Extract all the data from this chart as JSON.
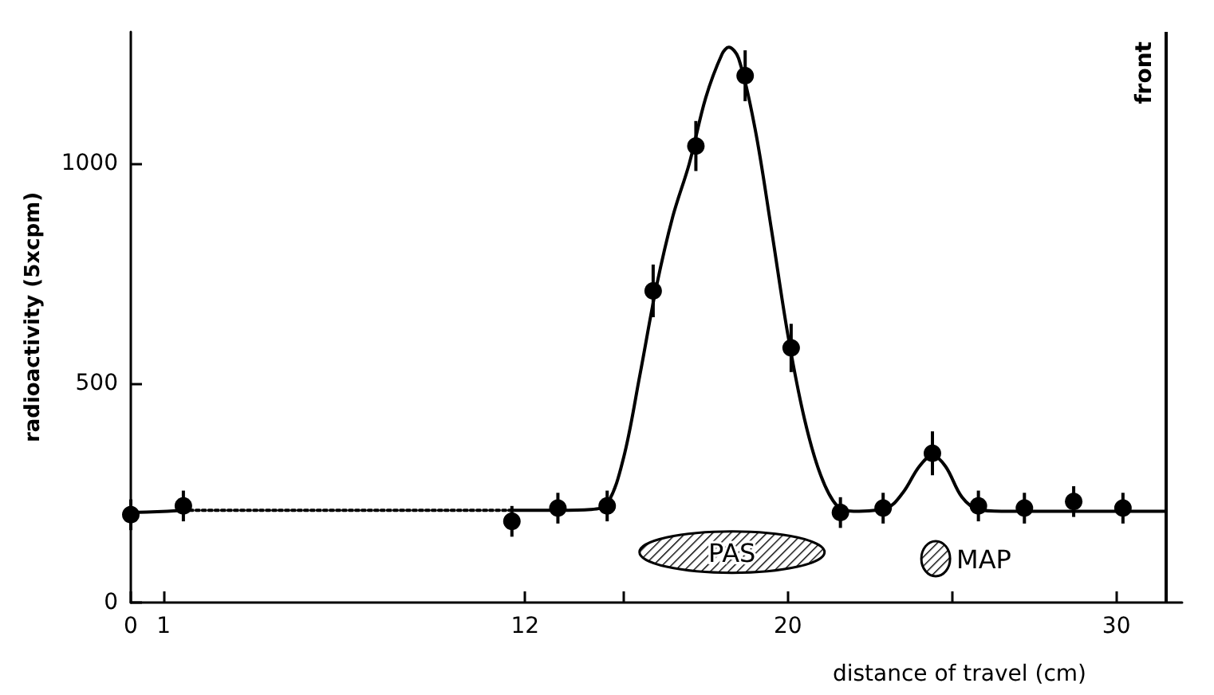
{
  "chart_data": {
    "type": "scatter",
    "xlabel": "distance of travel (cm)",
    "ylabel": "radioactivity (5xcpm)",
    "xlim": [
      0,
      32
    ],
    "xticks": [
      0,
      1,
      12,
      {
        "value": 15,
        "label": null
      },
      20,
      {
        "value": 25,
        "label": null
      },
      30
    ],
    "ylim": [
      0,
      1300
    ],
    "yticks": [
      0,
      500,
      1000
    ],
    "grid": false,
    "series": [
      {
        "type": "line",
        "color": "#000000",
        "marker": "none",
        "line_style": "solid",
        "x": [
          0,
          0.8,
          1.6
        ],
        "values": [
          205,
          207,
          210
        ]
      },
      {
        "type": "line",
        "color": "#000000",
        "marker": "none",
        "line_style": "dotted",
        "x": [
          1.6,
          4,
          6,
          8,
          10,
          11.6
        ],
        "values": [
          210,
          210,
          210,
          210,
          210,
          210
        ]
      },
      {
        "type": "line",
        "color": "#000000",
        "marker": "none",
        "line_style": "solid",
        "x": [
          11.6,
          13,
          14,
          14.5,
          15,
          15.5,
          16,
          16.5,
          17,
          17.5,
          18,
          18.2,
          18.5,
          19,
          19.5,
          20,
          20.5,
          21,
          21.5,
          22,
          23,
          23.5,
          24,
          24.4,
          24.8,
          25.3,
          25.8,
          26.5,
          31.5
        ],
        "values": [
          210,
          210,
          212,
          225,
          330,
          520,
          720,
          880,
          1000,
          1150,
          1250,
          1265,
          1240,
          1080,
          850,
          610,
          420,
          290,
          220,
          208,
          215,
          250,
          310,
          335,
          310,
          240,
          212,
          208,
          208
        ]
      },
      {
        "color": "#000000",
        "marker": "circle",
        "x": [
          0,
          1.6,
          11.6,
          13.0,
          14.5,
          15.9,
          17.2,
          18.7,
          20.1,
          21.6,
          22.9,
          24.4,
          25.8,
          27.2,
          28.7,
          30.2
        ],
        "values": [
          200,
          220,
          185,
          215,
          220,
          710,
          1040,
          1200,
          580,
          205,
          215,
          340,
          220,
          215,
          230,
          215
        ],
        "errors": [
          35,
          35,
          35,
          35,
          35,
          60,
          57,
          58,
          55,
          35,
          35,
          50,
          35,
          35,
          35,
          35
        ]
      }
    ],
    "ref_lines": [
      {
        "axis": "x",
        "value": 31.5,
        "label": "front"
      }
    ],
    "annotations": [
      "PAS",
      "MAP"
    ]
  }
}
